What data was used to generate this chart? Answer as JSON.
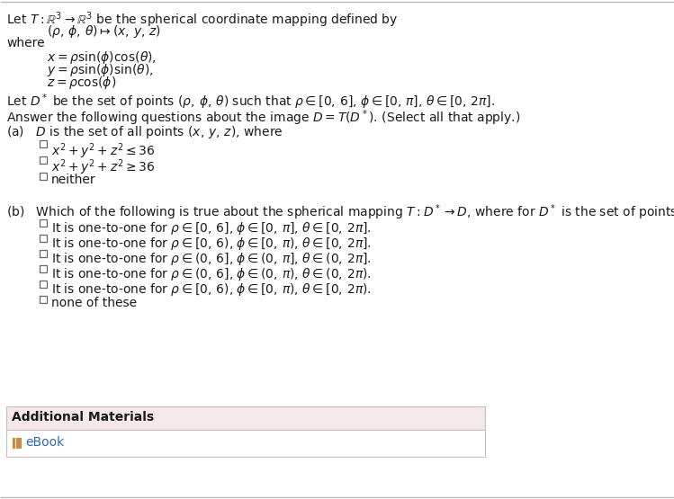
{
  "bg_color": "#ffffff",
  "text_color": "#1a1a1a",
  "checkbox_color": "#666666",
  "additional_bg": "#f5e8e8",
  "additional_border": "#ccbbbb",
  "ebook_color": "#3366aa",
  "border_color": "#bbbbbb",
  "font_size": 10.0,
  "line1": "Let $T : \\mathbb{R}^3 \\rightarrow \\mathbb{R}^3$ be the spherical coordinate mapping defined by",
  "line2": "$(\\rho,\\, \\phi,\\, \\theta) \\mapsto (x,\\, y,\\, z)$",
  "where_text": "where",
  "eq1": "$x = \\rho \\sin(\\phi) \\cos(\\theta),$",
  "eq2": "$y = \\rho \\sin(\\phi) \\sin(\\theta),$",
  "eq3": "$z = \\rho \\cos(\\phi)$",
  "dstar": "Let $D^*$ be the set of points $(\\rho,\\, \\phi,\\, \\theta)$ such that $\\rho \\in [0,\\, 6]$, $\\phi \\in [0,\\, \\pi]$, $\\theta \\in [0,\\, 2\\pi]$.",
  "answer": "Answer the following questions about the image $D = T(D^*)$. (Select all that apply.)",
  "pa_label": "(a)   $D$ is the set of all points $(x,\\, y,\\, z)$, where",
  "pa_opts": [
    "$x^2 + y^2 + z^2 \\leq 36$",
    "$x^2 + y^2 + z^2 \\geq 36$",
    "neither"
  ],
  "pb_label": "(b)   Which of the following is true about the spherical mapping $T : D^* \\rightarrow D$, where for $D^*$ is the set of points $(\\rho,\\, \\phi,\\, \\theta)$?",
  "pb_opts": [
    "It is one-to-one for $\\rho \\in [0,\\, 6]$, $\\phi \\in [0,\\, \\pi]$, $\\theta \\in [0,\\, 2\\pi]$.",
    "It is one-to-one for $\\rho \\in [0,\\, 6)$, $\\phi \\in [0,\\, \\pi)$, $\\theta \\in [0,\\, 2\\pi]$.",
    "It is one-to-one for $\\rho \\in (0,\\, 6]$, $\\phi \\in (0,\\, \\pi]$, $\\theta \\in (0,\\, 2\\pi]$.",
    "It is one-to-one for $\\rho \\in (0,\\, 6]$, $\\phi \\in (0,\\, \\pi)$, $\\theta \\in (0,\\, 2\\pi)$.",
    "It is one-to-one for $\\rho \\in [0,\\, 6)$, $\\phi \\in [0,\\, \\pi)$, $\\theta \\in [0,\\, 2\\pi)$.",
    "none of these"
  ],
  "add_mat": "Additional Materials",
  "ebook": "eBook"
}
